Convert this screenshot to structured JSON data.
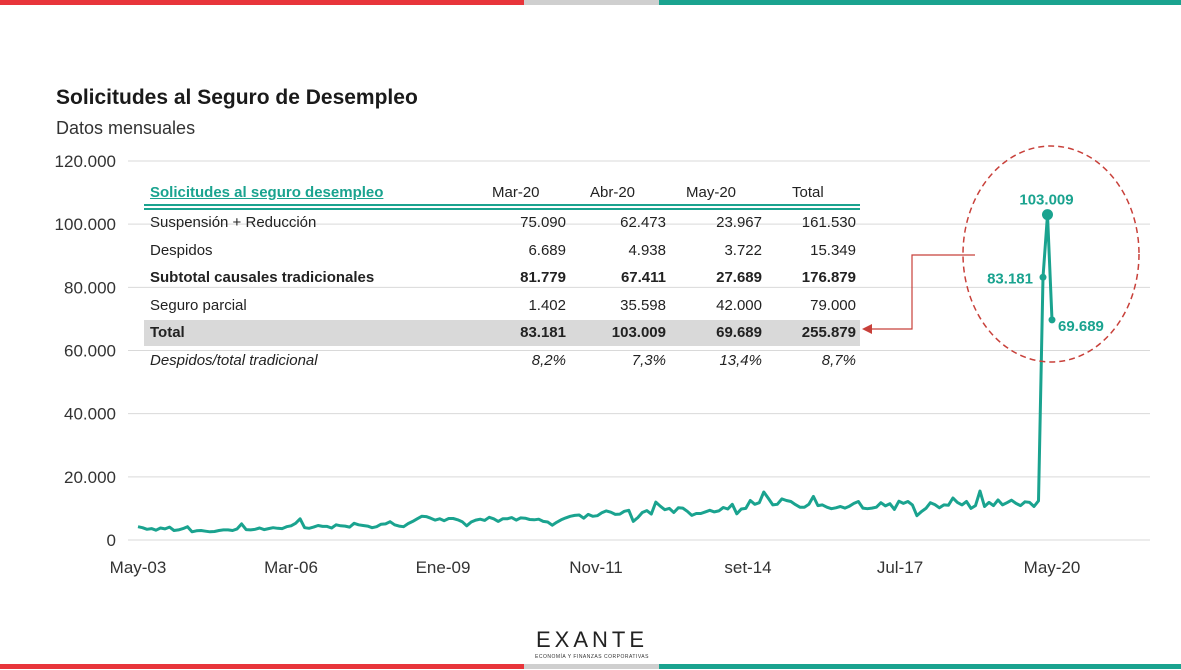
{
  "colors": {
    "series": "#1aa38f",
    "accent_red": "#e8353b",
    "gray_band": "#cfcfcf",
    "ellipse": "#c8403a"
  },
  "header": {
    "title": "Solicitudes al Seguro de Desempleo",
    "subtitle": "Datos mensuales"
  },
  "chart_data": {
    "type": "line",
    "title": "Solicitudes al Seguro de Desempleo",
    "subtitle": "Datos mensuales",
    "ylim": [
      0,
      120000
    ],
    "yticks": [
      0,
      20000,
      40000,
      60000,
      80000,
      100000,
      120000
    ],
    "ytick_labels": [
      "0",
      "20.000",
      "40.000",
      "60.000",
      "80.000",
      "100.000",
      "120.000"
    ],
    "x_range": [
      "2003-05",
      "2020-05"
    ],
    "xtick_labels": [
      "May-03",
      "Mar-06",
      "Ene-09",
      "Nov-11",
      "set-14",
      "Jul-17",
      "May-20"
    ],
    "grid": true,
    "series": [
      {
        "name": "",
        "x_start": "2003-05",
        "frequency": "monthly",
        "values": [
          4200,
          3900,
          3400,
          3600,
          3100,
          3800,
          3500,
          4100,
          3000,
          3200,
          3600,
          4200,
          2600,
          2900,
          3000,
          2800,
          2600,
          2700,
          3000,
          3200,
          3200,
          3000,
          3500,
          5100,
          3300,
          3200,
          3400,
          3800,
          3300,
          3600,
          3900,
          3700,
          3600,
          4200,
          4500,
          5300,
          6700,
          3900,
          3700,
          4100,
          4600,
          4300,
          4300,
          3800,
          4800,
          4500,
          4400,
          4100,
          5300,
          4800,
          4600,
          4400,
          3900,
          4200,
          5000,
          5100,
          5800,
          4800,
          4400,
          4200,
          5200,
          5900,
          6700,
          7500,
          7400,
          6900,
          6300,
          6700,
          6100,
          6800,
          6800,
          6400,
          5800,
          4500,
          5700,
          6300,
          6600,
          6200,
          7200,
          6700,
          5900,
          6700,
          6700,
          7100,
          6300,
          7000,
          6900,
          6500,
          6400,
          6600,
          5900,
          5700,
          4700,
          5600,
          6400,
          7000,
          7500,
          7800,
          7900,
          6900,
          8100,
          7500,
          7700,
          8600,
          9200,
          8800,
          8100,
          8200,
          9100,
          9400,
          5900,
          7100,
          8700,
          9300,
          8200,
          12000,
          10700,
          9600,
          10000,
          8700,
          10200,
          10100,
          9100,
          7800,
          8400,
          8400,
          8900,
          9400,
          8900,
          9200,
          10300,
          9800,
          11300,
          8300,
          9800,
          10000,
          12500,
          11300,
          11800,
          15200,
          13200,
          11100,
          11300,
          13000,
          12500,
          12200,
          11200,
          10400,
          10400,
          11300,
          13800,
          10900,
          11100,
          10400,
          9900,
          10200,
          10600,
          10100,
          10700,
          11600,
          12200,
          10100,
          9900,
          10100,
          10400,
          11800,
          10800,
          11500,
          9700,
          12300,
          11600,
          12200,
          11100,
          7700,
          9000,
          10000,
          11800,
          11200,
          10200,
          11100,
          11000,
          13300,
          11900,
          11100,
          12200,
          10000,
          10900,
          15500,
          10600,
          11900,
          10900,
          12700,
          11100,
          11800,
          12600,
          11600,
          10900,
          12100,
          11900,
          10600,
          12400,
          83181,
          103009,
          69689
        ]
      }
    ],
    "annotations": [
      {
        "x": "2020-03",
        "y": 83181,
        "label": "83.181"
      },
      {
        "x": "2020-04",
        "y": 103009,
        "label": "103.009"
      },
      {
        "x": "2020-05",
        "y": 69689,
        "label": "69.689"
      }
    ]
  },
  "table": {
    "header": [
      "Solicitudes al seguro desempleo",
      "Mar-20",
      "Abr-20",
      "May-20",
      "Total"
    ],
    "rows": [
      {
        "cells": [
          "Suspensión + Reducción",
          "75.090",
          "62.473",
          "23.967",
          "161.530"
        ],
        "style": "normal"
      },
      {
        "cells": [
          "Despidos",
          "6.689",
          "4.938",
          "3.722",
          "15.349"
        ],
        "style": "normal"
      },
      {
        "cells": [
          "Subtotal causales tradicionales",
          "81.779",
          "67.411",
          "27.689",
          "176.879"
        ],
        "style": "bold"
      },
      {
        "cells": [
          "Seguro parcial",
          "1.402",
          "35.598",
          "42.000",
          "79.000"
        ],
        "style": "normal"
      },
      {
        "cells": [
          "Total",
          "83.181",
          "103.009",
          "69.689",
          "255.879"
        ],
        "style": "total"
      },
      {
        "cells": [
          "Despidos/total tradicional",
          "8,2%",
          "7,3%",
          "13,4%",
          "8,7%"
        ],
        "style": "italic"
      }
    ]
  },
  "logo": {
    "brand": "EXANTE",
    "tagline": "ECONOMÍA Y FINANZAS CORPORATIVAS"
  }
}
